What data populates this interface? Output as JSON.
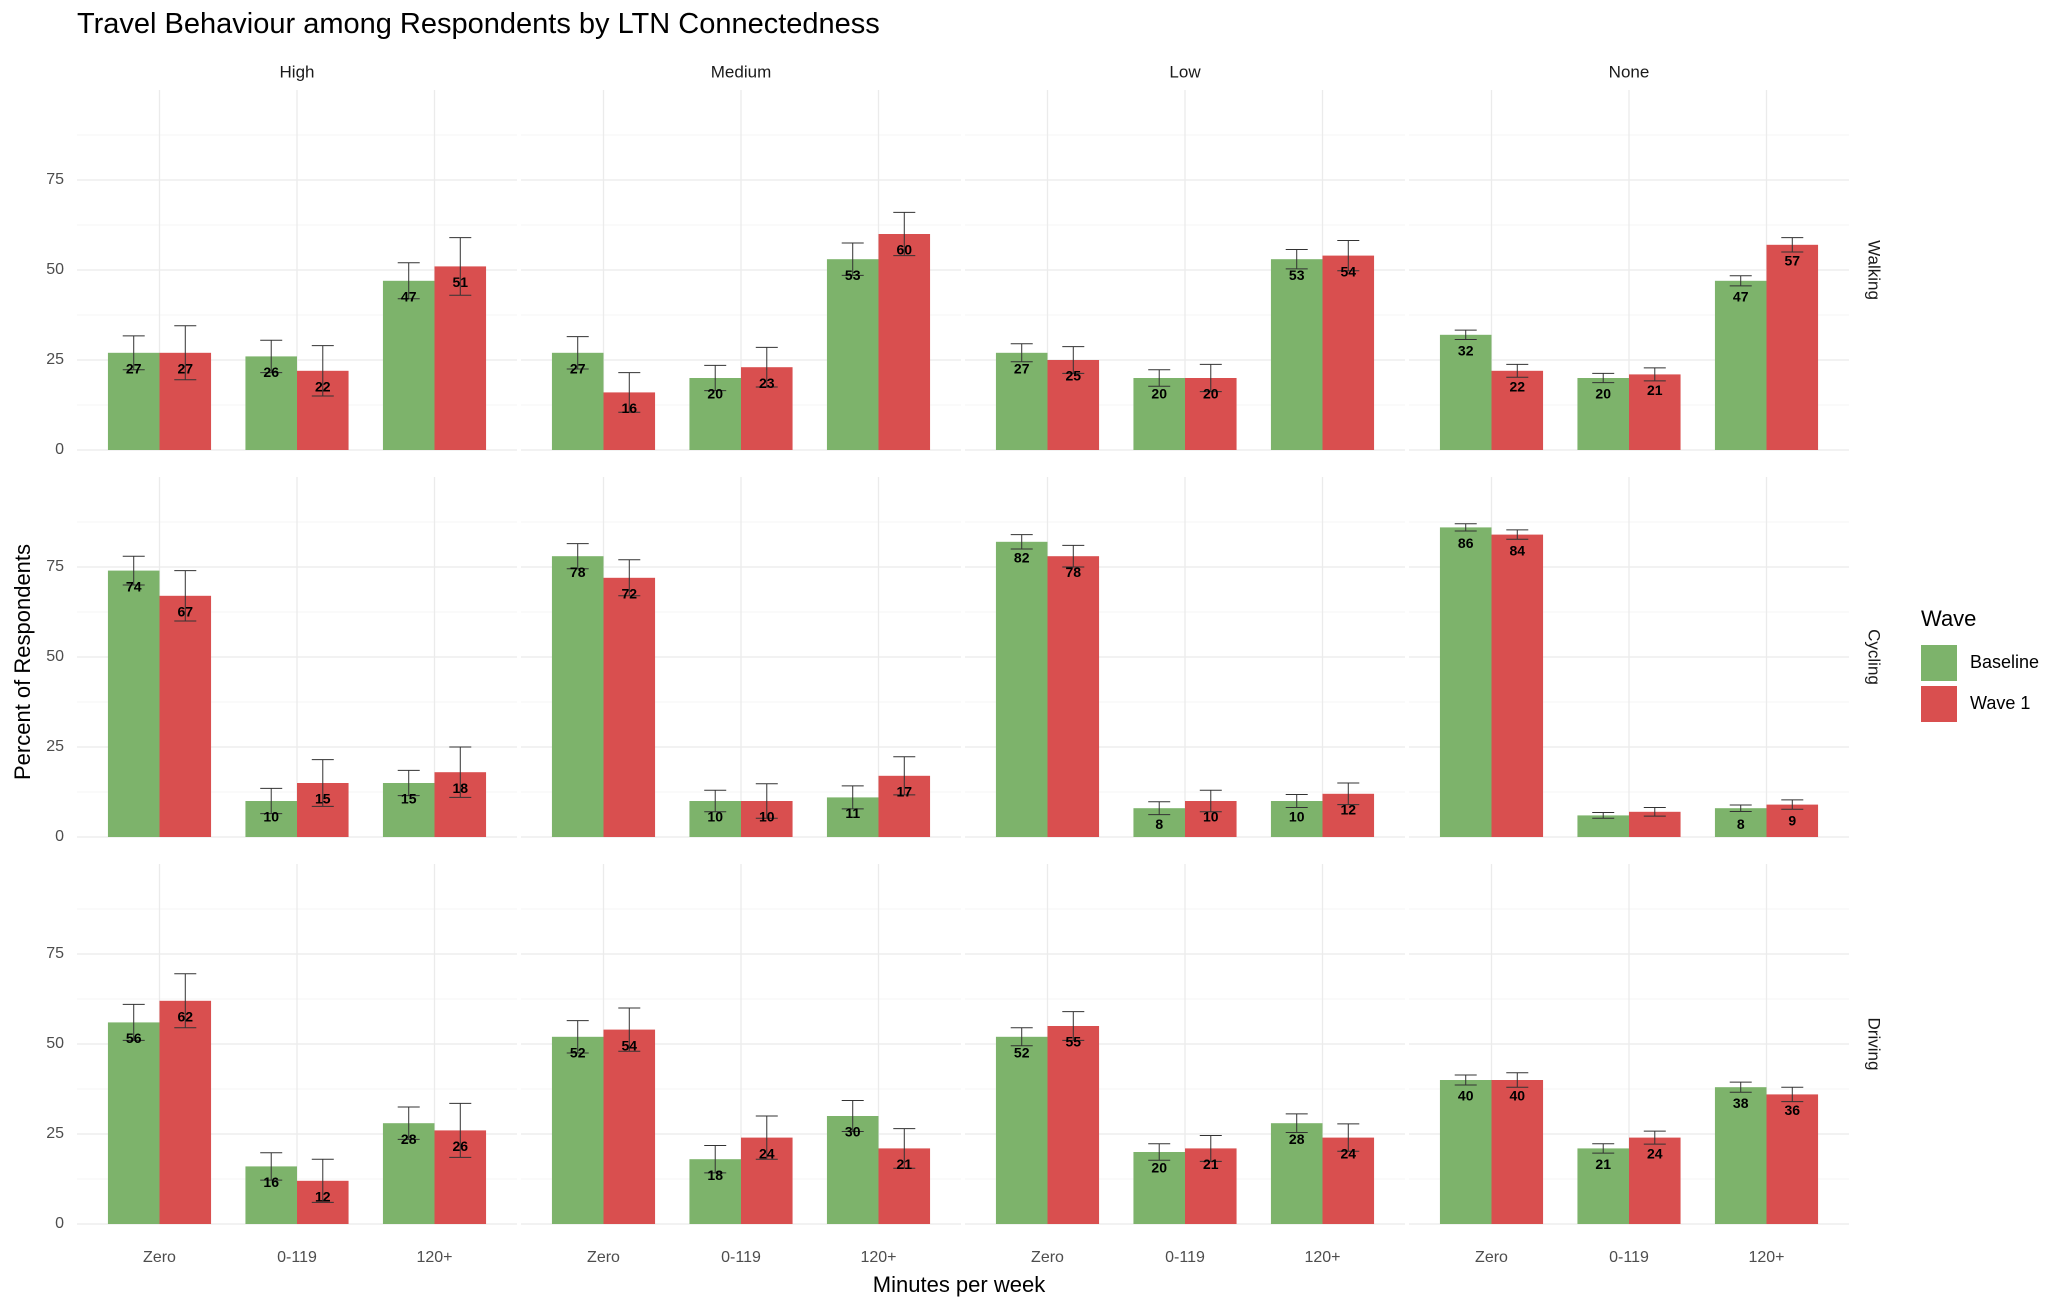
{
  "chart_data": {
    "type": "bar",
    "title": "Travel Behaviour among Respondents by LTN Connectedness",
    "x_label": "Minutes per week",
    "y_label": "Percent of Respondents",
    "legend_title": "Wave",
    "categories": [
      "Zero",
      "0-119",
      "120+"
    ],
    "columns": [
      "High",
      "Medium",
      "Low",
      "None"
    ],
    "rows": [
      "Walking",
      "Cycling",
      "Driving"
    ],
    "series": [
      {
        "name": "Baseline",
        "color": "#7db36b"
      },
      {
        "name": "Wave 1",
        "color": "#d94f4f"
      }
    ],
    "ylim": [
      0,
      100
    ],
    "yticks": [
      0,
      25,
      50,
      75
    ],
    "grid": true,
    "panels": [
      [
        {
          "values": [
            [
              27,
              26,
              47
            ],
            [
              27,
              22,
              51
            ]
          ],
          "errors": [
            [
              4.7,
              4.5,
              5
            ],
            [
              7.5,
              7,
              8
            ]
          ]
        },
        {
          "values": [
            [
              27,
              20,
              53
            ],
            [
              16,
              23,
              60
            ]
          ],
          "errors": [
            [
              4.5,
              3.5,
              4.5
            ],
            [
              5.5,
              5.5,
              6
            ]
          ]
        },
        {
          "values": [
            [
              27,
              20,
              53
            ],
            [
              25,
              20,
              54
            ]
          ],
          "errors": [
            [
              2.5,
              2.3,
              2.7
            ],
            [
              3.7,
              3.8,
              4.2
            ]
          ]
        },
        {
          "values": [
            [
              32,
              20,
              47
            ],
            [
              22,
              21,
              57
            ]
          ],
          "errors": [
            [
              1.3,
              1.3,
              1.4
            ],
            [
              1.8,
              1.8,
              2
            ]
          ]
        }
      ],
      [
        {
          "values": [
            [
              74,
              10,
              15
            ],
            [
              67,
              15,
              18
            ]
          ],
          "errors": [
            [
              4,
              3.5,
              3.5
            ],
            [
              7,
              6.5,
              7
            ]
          ]
        },
        {
          "values": [
            [
              78,
              10,
              11
            ],
            [
              72,
              10,
              17
            ]
          ],
          "errors": [
            [
              3.5,
              3,
              3.2
            ],
            [
              5,
              4.8,
              5.3
            ]
          ]
        },
        {
          "values": [
            [
              82,
              8,
              10
            ],
            [
              78,
              10,
              12
            ]
          ],
          "errors": [
            [
              2,
              1.8,
              1.8
            ],
            [
              3,
              3,
              3
            ]
          ]
        },
        {
          "values": [
            [
              86,
              6,
              8
            ],
            [
              84,
              7,
              9
            ]
          ],
          "errors": [
            [
              1,
              0.8,
              0.9
            ],
            [
              1.3,
              1.2,
              1.3
            ]
          ],
          "value_labels": [
            [
              "86",
              null,
              "8"
            ],
            [
              "84",
              null,
              "9"
            ]
          ]
        }
      ],
      [
        {
          "values": [
            [
              56,
              16,
              28
            ],
            [
              62,
              12,
              26
            ]
          ],
          "errors": [
            [
              5,
              3.8,
              4.5
            ],
            [
              7.5,
              6,
              7.5
            ]
          ]
        },
        {
          "values": [
            [
              52,
              18,
              30
            ],
            [
              54,
              24,
              21
            ]
          ],
          "errors": [
            [
              4.5,
              3.8,
              4.3
            ],
            [
              6,
              6,
              5.5
            ]
          ]
        },
        {
          "values": [
            [
              52,
              20,
              28
            ],
            [
              55,
              21,
              24
            ]
          ],
          "errors": [
            [
              2.5,
              2.3,
              2.6
            ],
            [
              4,
              3.6,
              3.8
            ]
          ]
        },
        {
          "values": [
            [
              40,
              21,
              38
            ],
            [
              40,
              24,
              36
            ]
          ],
          "errors": [
            [
              1.4,
              1.3,
              1.4
            ],
            [
              2,
              1.8,
              2
            ]
          ]
        }
      ]
    ]
  }
}
